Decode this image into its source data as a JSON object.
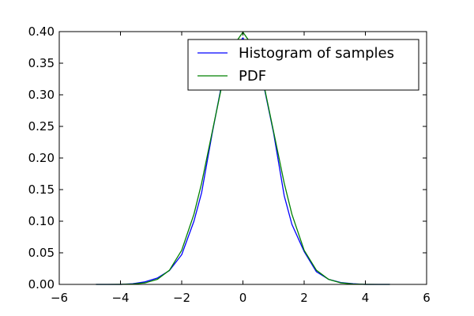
{
  "chart_data": {
    "type": "line",
    "title": "",
    "xlabel": "",
    "ylabel": "",
    "xlim": [
      -6,
      6
    ],
    "ylim": [
      0,
      0.4
    ],
    "x_ticks": [
      -6,
      -4,
      -2,
      0,
      2,
      4,
      6
    ],
    "x_tick_labels": [
      "−6",
      "−4",
      "−2",
      "0",
      "2",
      "4",
      "6"
    ],
    "y_ticks": [
      0.0,
      0.05,
      0.1,
      0.15,
      0.2,
      0.25,
      0.3,
      0.35,
      0.4
    ],
    "y_tick_labels": [
      "0.00",
      "0.05",
      "0.10",
      "0.15",
      "0.20",
      "0.25",
      "0.30",
      "0.35",
      "0.40"
    ],
    "grid": false,
    "legend_position": "top-right",
    "series": [
      {
        "name": "Histogram of samples",
        "color": "#0000ff",
        "x": [
          -4.8,
          -4.4,
          -4.0,
          -3.6,
          -3.2,
          -2.8,
          -2.4,
          -2.0,
          -1.6,
          -1.35,
          -1.0,
          -0.7,
          -0.35,
          0.0,
          0.35,
          0.7,
          1.0,
          1.35,
          1.6,
          2.0,
          2.4,
          2.8,
          3.2,
          3.6,
          4.0,
          4.4,
          4.8
        ],
        "y": [
          0.0,
          0.0,
          0.0,
          0.001,
          0.004,
          0.01,
          0.022,
          0.047,
          0.1,
          0.145,
          0.24,
          0.315,
          0.37,
          0.39,
          0.36,
          0.31,
          0.24,
          0.14,
          0.095,
          0.052,
          0.02,
          0.008,
          0.003,
          0.001,
          0.0,
          0.0,
          0.0
        ]
      },
      {
        "name": "PDF",
        "color": "#008000",
        "x": [
          -4.8,
          -4.4,
          -4.0,
          -3.6,
          -3.2,
          -2.8,
          -2.4,
          -2.0,
          -1.6,
          -1.35,
          -1.0,
          -0.7,
          -0.35,
          0.0,
          0.35,
          0.7,
          1.0,
          1.35,
          1.6,
          2.0,
          2.4,
          2.8,
          3.2,
          3.6,
          4.0,
          4.4,
          4.8
        ],
        "y": [
          0.0,
          0.0,
          0.0001,
          0.0006,
          0.0024,
          0.0079,
          0.0224,
          0.054,
          0.111,
          0.16,
          0.242,
          0.312,
          0.375,
          0.399,
          0.375,
          0.312,
          0.242,
          0.16,
          0.111,
          0.054,
          0.0224,
          0.0079,
          0.0024,
          0.0006,
          0.0001,
          0.0,
          0.0
        ]
      }
    ]
  }
}
